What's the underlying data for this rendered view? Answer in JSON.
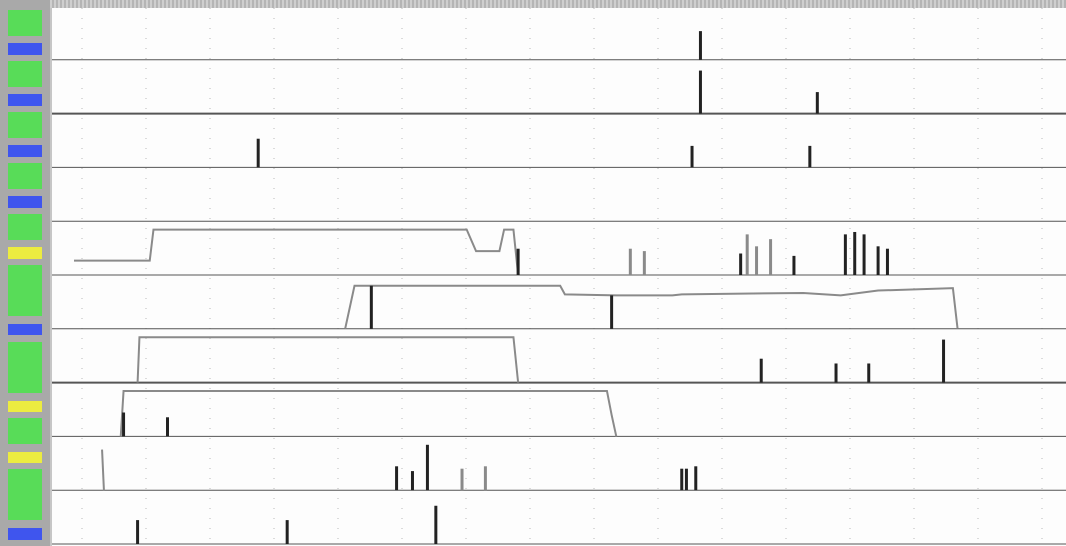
{
  "colors": {
    "green": "#58dc58",
    "blue": "#3f55ee",
    "yellow": "#ecec40",
    "trace": "#222222",
    "trace_light": "#8a8a8a",
    "grid": "#b9b9b9",
    "baseline": "#555555"
  },
  "sidebar": {
    "chips": [
      "green",
      "blue",
      "green",
      "blue",
      "green",
      "blue",
      "green",
      "blue",
      "green",
      "yellow",
      "green",
      "green",
      "blue",
      "green",
      "green",
      "yellow",
      "green",
      "yellow",
      "green",
      "green",
      "blue"
    ]
  },
  "timeline": {
    "lane_count": 10,
    "lanes": [
      {
        "events": [
          {
            "t": 0.67,
            "h": 0.6
          }
        ]
      },
      {
        "events": [
          {
            "t": 0.67,
            "h": 0.9
          },
          {
            "t": 0.795,
            "h": 0.45
          }
        ]
      },
      {
        "events": [
          {
            "t": 0.197,
            "h": 0.6
          },
          {
            "t": 0.661,
            "h": 0.45
          },
          {
            "t": 0.787,
            "h": 0.45
          }
        ]
      },
      {
        "events": []
      },
      {
        "steps": [
          [
            0.0,
            0.3
          ],
          [
            0.081,
            0.3
          ],
          [
            0.085,
            0.95
          ],
          [
            0.42,
            0.95
          ],
          [
            0.43,
            0.5
          ],
          [
            0.455,
            0.5
          ],
          [
            0.46,
            0.95
          ],
          [
            0.47,
            0.95
          ],
          [
            0.475,
            0.0
          ]
        ],
        "events": [
          {
            "t": 0.475,
            "h": 0.55
          },
          {
            "t": 0.595,
            "h": 0.55,
            "light": true
          },
          {
            "t": 0.61,
            "h": 0.5,
            "light": true
          },
          {
            "t": 0.713,
            "h": 0.45
          },
          {
            "t": 0.72,
            "h": 0.85,
            "light": true
          },
          {
            "t": 0.73,
            "h": 0.6,
            "light": true
          },
          {
            "t": 0.745,
            "h": 0.75,
            "light": true
          },
          {
            "t": 0.77,
            "h": 0.4
          },
          {
            "t": 0.825,
            "h": 0.85
          },
          {
            "t": 0.835,
            "h": 0.9
          },
          {
            "t": 0.845,
            "h": 0.85
          },
          {
            "t": 0.86,
            "h": 0.6
          },
          {
            "t": 0.87,
            "h": 0.55
          }
        ]
      },
      {
        "steps": [
          [
            0.29,
            0.0
          ],
          [
            0.3,
            0.9
          ],
          [
            0.52,
            0.9
          ],
          [
            0.525,
            0.72
          ],
          [
            0.58,
            0.7
          ],
          [
            0.64,
            0.7
          ],
          [
            0.65,
            0.72
          ],
          [
            0.78,
            0.75
          ],
          [
            0.82,
            0.7
          ],
          [
            0.86,
            0.8
          ],
          [
            0.94,
            0.85
          ],
          [
            0.945,
            0.0
          ]
        ],
        "events": [
          {
            "t": 0.575,
            "h": 0.7
          },
          {
            "t": 0.318,
            "h": 0.9
          }
        ]
      },
      {
        "steps": [
          [
            0.068,
            0.0
          ],
          [
            0.07,
            0.95
          ],
          [
            0.47,
            0.95
          ],
          [
            0.475,
            0.0
          ]
        ],
        "events": [
          {
            "t": 0.735,
            "h": 0.5
          },
          {
            "t": 0.815,
            "h": 0.4
          },
          {
            "t": 0.85,
            "h": 0.4
          },
          {
            "t": 0.93,
            "h": 0.9
          }
        ]
      },
      {
        "steps": [
          [
            0.05,
            0.0
          ],
          [
            0.053,
            0.95
          ],
          [
            0.57,
            0.95
          ],
          [
            0.575,
            0.45
          ],
          [
            0.58,
            0.0
          ]
        ],
        "events": [
          {
            "t": 0.053,
            "h": 0.5
          },
          {
            "t": 0.1,
            "h": 0.4
          }
        ]
      },
      {
        "steps": [
          [
            0.03,
            0.85
          ],
          [
            0.032,
            0.0
          ]
        ],
        "events": [
          {
            "t": 0.345,
            "h": 0.5
          },
          {
            "t": 0.362,
            "h": 0.4
          },
          {
            "t": 0.378,
            "h": 0.95
          },
          {
            "t": 0.415,
            "h": 0.45,
            "light": true
          },
          {
            "t": 0.44,
            "h": 0.5,
            "light": true
          },
          {
            "t": 0.65,
            "h": 0.45
          },
          {
            "t": 0.655,
            "h": 0.45
          },
          {
            "t": 0.665,
            "h": 0.5
          }
        ]
      },
      {
        "events": [
          {
            "t": 0.068,
            "h": 0.5
          },
          {
            "t": 0.228,
            "h": 0.5
          },
          {
            "t": 0.387,
            "h": 0.8
          }
        ]
      }
    ]
  }
}
